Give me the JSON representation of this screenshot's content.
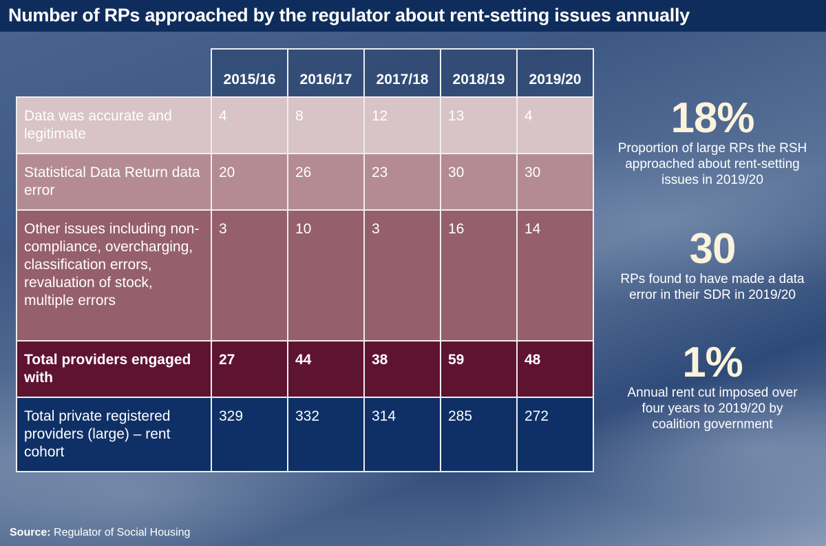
{
  "title": "Number of RPs approached by the regulator about rent-setting issues annually",
  "chart_data": {
    "type": "table",
    "title": "Number of RPs approached by the regulator about rent-setting issues annually",
    "columns": [
      "2015/16",
      "2016/17",
      "2017/18",
      "2018/19",
      "2019/20"
    ],
    "rows": [
      {
        "label": "Data was accurate and legitimate",
        "values": [
          "4",
          "8",
          "12",
          "13",
          "4"
        ],
        "color": "#d8c3c7"
      },
      {
        "label": "Statistical Data Return data error",
        "values": [
          "20",
          "26",
          "23",
          "30",
          "30"
        ],
        "color": "#b48b93"
      },
      {
        "label": "Other issues including non-compliance, overcharging, classification errors, revaluation of stock, multiple errors",
        "values": [
          "3",
          "10",
          "3",
          "16",
          "14"
        ],
        "color": "#955f6c"
      },
      {
        "label": "Total providers engaged with",
        "values": [
          "27",
          "44",
          "38",
          "59",
          "48"
        ],
        "color": "#5e1430"
      },
      {
        "label": "Total private registered providers (large) – rent cohort",
        "values": [
          "329",
          "332",
          "314",
          "285",
          "272"
        ],
        "color": "#0e3066"
      }
    ]
  },
  "stats": [
    {
      "value": "18%",
      "text": "Proportion of large RPs the RSH approached about rent-setting issues in 2019/20"
    },
    {
      "value": "30",
      "text": "RPs found to have made a data error in their SDR in 2019/20"
    },
    {
      "value": "1%",
      "text": "Annual rent cut imposed over four years to 2019/20 by coalition government"
    }
  ],
  "source": {
    "label": "Source:",
    "text": "Regulator of Social Housing"
  },
  "colors": {
    "title_bar": "#0f2d5c",
    "stat_number": "#fbf3dc"
  }
}
